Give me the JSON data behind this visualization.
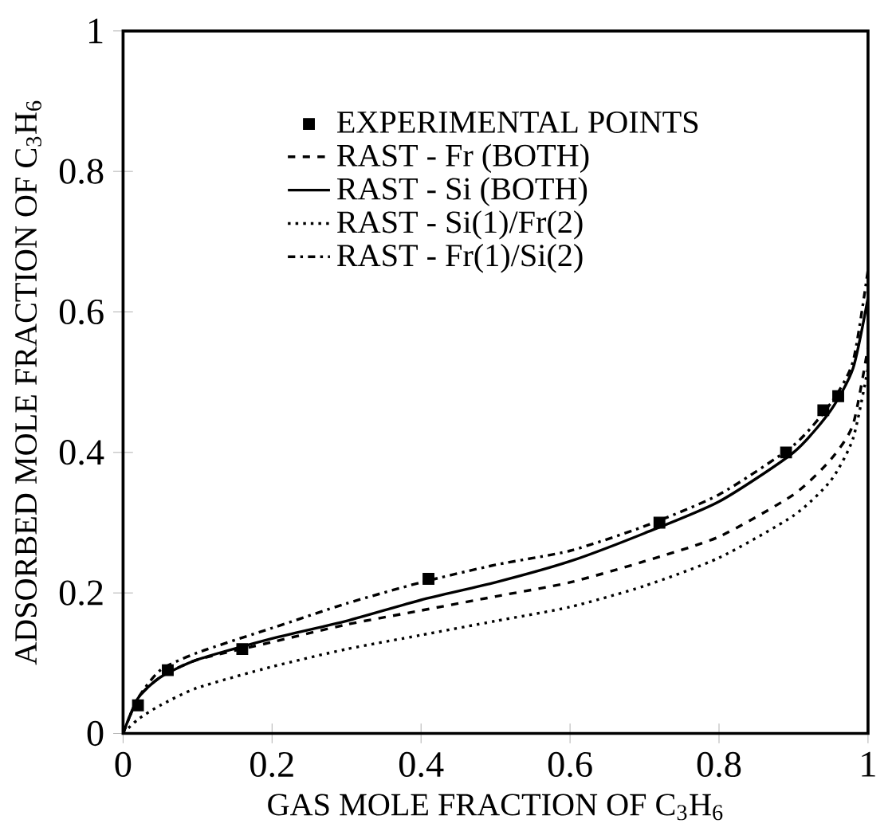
{
  "chart_data": {
    "type": "line",
    "xlabel": "GAS MOLE FRACTION OF C$_{3}$H$_{6}$",
    "ylabel": "ADSORBED MOLE FRACTION OF C$_{3}$H$_{6}$",
    "xlim": [
      0,
      1
    ],
    "ylim": [
      0,
      1
    ],
    "xticks": [
      0,
      0.2,
      0.4,
      0.6,
      0.8,
      1
    ],
    "yticks": [
      0,
      0.2,
      0.4,
      0.6,
      0.8,
      1
    ],
    "grid": false,
    "legend": "top",
    "series": [
      {
        "name": "EXPERIMENTAL POINTS",
        "type": "scatter",
        "marker": "square",
        "color": "#000000",
        "x": [
          0.02,
          0.06,
          0.16,
          0.41,
          0.72,
          0.89,
          0.94,
          0.96
        ],
        "values": [
          0.04,
          0.09,
          0.12,
          0.22,
          0.3,
          0.4,
          0.46,
          0.48
        ]
      },
      {
        "name": "RAST - Fr (BOTH)",
        "line_style": "dashed",
        "color": "#000000",
        "x": [
          0,
          0.02,
          0.05,
          0.1,
          0.2,
          0.3,
          0.4,
          0.5,
          0.6,
          0.7,
          0.8,
          0.9,
          0.95,
          0.98,
          1.0
        ],
        "values": [
          0,
          0.05,
          0.08,
          0.105,
          0.13,
          0.155,
          0.175,
          0.195,
          0.215,
          0.245,
          0.28,
          0.34,
          0.39,
          0.44,
          0.55
        ]
      },
      {
        "name": "RAST - Si (BOTH)",
        "line_style": "solid",
        "color": "#000000",
        "x": [
          0,
          0.02,
          0.05,
          0.1,
          0.2,
          0.3,
          0.4,
          0.5,
          0.6,
          0.7,
          0.8,
          0.9,
          0.95,
          0.98,
          1.0
        ],
        "values": [
          0,
          0.05,
          0.08,
          0.105,
          0.135,
          0.16,
          0.19,
          0.215,
          0.245,
          0.285,
          0.33,
          0.4,
          0.46,
          0.52,
          0.62
        ]
      },
      {
        "name": "RAST - Si(1)/Fr(2)",
        "line_style": "dotted",
        "color": "#000000",
        "x": [
          0,
          0.02,
          0.05,
          0.1,
          0.2,
          0.3,
          0.4,
          0.5,
          0.6,
          0.7,
          0.8,
          0.9,
          0.95,
          0.98,
          1.0
        ],
        "values": [
          0,
          0.02,
          0.04,
          0.065,
          0.095,
          0.12,
          0.14,
          0.16,
          0.18,
          0.21,
          0.25,
          0.31,
          0.36,
          0.42,
          0.52
        ]
      },
      {
        "name": "RAST - Fr(1)/Si(2)",
        "line_style": "dashdot",
        "color": "#000000",
        "x": [
          0,
          0.02,
          0.05,
          0.1,
          0.2,
          0.3,
          0.4,
          0.5,
          0.6,
          0.7,
          0.8,
          0.9,
          0.95,
          0.98,
          1.0
        ],
        "values": [
          0,
          0.05,
          0.09,
          0.115,
          0.15,
          0.185,
          0.215,
          0.24,
          0.26,
          0.295,
          0.34,
          0.41,
          0.47,
          0.53,
          0.66
        ]
      }
    ]
  }
}
